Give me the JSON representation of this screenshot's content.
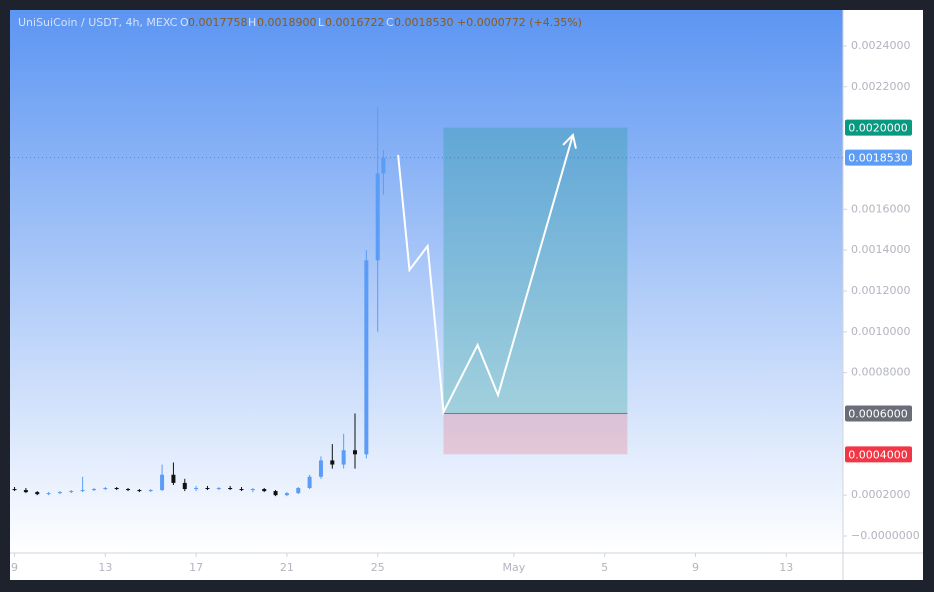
{
  "chart_data": {
    "type": "candlestick",
    "header": {
      "symbol": "UniSuiCoin / USDT, 4h, MEXC",
      "open_key": "O",
      "open": "0.0017758",
      "high_key": "H",
      "high": "0.0018900",
      "low_key": "L",
      "low": "0.0016722",
      "close_key": "C",
      "close": "0.0018530",
      "change": "+0.0000772 (+4.35%)"
    },
    "xlim": [
      -0.2,
      36.5
    ],
    "xticks": [
      {
        "value": 0,
        "label": "9"
      },
      {
        "value": 4,
        "label": "13"
      },
      {
        "value": 8,
        "label": "17"
      },
      {
        "value": 12,
        "label": "21"
      },
      {
        "value": 16,
        "label": "25"
      },
      {
        "value": 22,
        "label": "May"
      },
      {
        "value": 26,
        "label": "5"
      },
      {
        "value": 30,
        "label": "9"
      },
      {
        "value": 34,
        "label": "13"
      }
    ],
    "ylim": [
      -8.33e-05,
      0.002576
    ],
    "yticks": [
      {
        "value": 0,
        "label": "−0.0000000"
      },
      {
        "value": 0.0002,
        "label": "0.0002000"
      },
      {
        "value": 0.0008,
        "label": "0.0008000"
      },
      {
        "value": 0.001,
        "label": "0.0010000"
      },
      {
        "value": 0.0012,
        "label": "0.0012000"
      },
      {
        "value": 0.0014,
        "label": "0.0014000"
      },
      {
        "value": 0.0016,
        "label": "0.0016000"
      },
      {
        "value": 0.0022,
        "label": "0.0022000"
      },
      {
        "value": 0.0024,
        "label": "0.0024000"
      }
    ],
    "up_color": "#5b9cf6",
    "down_color": "#111111",
    "candles": {
      "x": [
        0,
        0.5,
        1,
        1.5,
        2,
        2.5,
        3,
        3.5,
        4,
        4.5,
        5,
        5.5,
        6,
        6.5,
        7,
        7.5,
        8,
        8.5,
        9,
        9.5,
        10,
        10.5,
        11,
        11.5,
        12,
        12.5,
        13,
        13.5,
        14,
        14.5,
        15,
        15.5,
        16,
        16.25
      ],
      "open": [
        0.00023,
        0.000225,
        0.000215,
        0.000205,
        0.00021,
        0.000215,
        0.00022,
        0.000225,
        0.00023,
        0.000235,
        0.00023,
        0.000225,
        0.00022,
        0.000225,
        0.0003,
        0.00026,
        0.00023,
        0.000235,
        0.00023,
        0.000235,
        0.00023,
        0.000225,
        0.00023,
        0.00022,
        0.0002,
        0.00021,
        0.000235,
        0.00029,
        0.00037,
        0.00035,
        0.00042,
        0.0004,
        0.00135,
        0.0017758
      ],
      "high": [
        0.00024,
        0.000235,
        0.00022,
        0.000215,
        0.00022,
        0.000225,
        0.00029,
        0.000235,
        0.00024,
        0.00024,
        0.000235,
        0.00023,
        0.00023,
        0.00035,
        0.00036,
        0.00028,
        0.000245,
        0.000245,
        0.00024,
        0.000245,
        0.00024,
        0.000235,
        0.000235,
        0.000225,
        0.000215,
        0.00024,
        0.0003,
        0.00039,
        0.00045,
        0.0005,
        0.0006,
        0.0014,
        0.0021,
        0.00189
      ],
      "low": [
        0.00022,
        0.00021,
        0.0002,
        0.0002,
        0.000205,
        0.00021,
        0.000215,
        0.00022,
        0.000225,
        0.000225,
        0.00022,
        0.000215,
        0.000215,
        0.00022,
        0.00025,
        0.00022,
        0.00022,
        0.000225,
        0.000225,
        0.000225,
        0.00022,
        0.000215,
        0.000215,
        0.000195,
        0.000195,
        0.000205,
        0.00023,
        0.00028,
        0.00033,
        0.00033,
        0.00033,
        0.00038,
        0.001,
        0.00167222
      ],
      "close": [
        0.000225,
        0.000215,
        0.000205,
        0.00021,
        0.000215,
        0.00022,
        0.000225,
        0.00023,
        0.000235,
        0.00023,
        0.000225,
        0.00022,
        0.000225,
        0.0003,
        0.00026,
        0.00023,
        0.000235,
        0.00023,
        0.000235,
        0.00023,
        0.000225,
        0.00023,
        0.00022,
        0.0002,
        0.00021,
        0.000235,
        0.00029,
        0.00037,
        0.00035,
        0.00042,
        0.0004,
        0.00135,
        0.0017758,
        0.001853
      ]
    },
    "position": {
      "x": [
        18.9,
        27.0
      ],
      "entry": {
        "value": 0.0006,
        "label": "0.0006000"
      },
      "target": {
        "value": 0.002,
        "label": "0.0020000"
      },
      "stop": {
        "value": 0.0004,
        "label": "0.0004000"
      }
    },
    "last_price": {
      "value": 0.001853,
      "label": "0.0018530"
    },
    "projection": {
      "x": [
        16.9,
        17.4,
        18.2,
        18.9,
        20.4,
        21.3,
        24.6
      ],
      "values": [
        0.001866,
        0.001303,
        0.00142,
        0.000607,
        0.000935,
        0.00069,
        0.001964
      ]
    }
  }
}
